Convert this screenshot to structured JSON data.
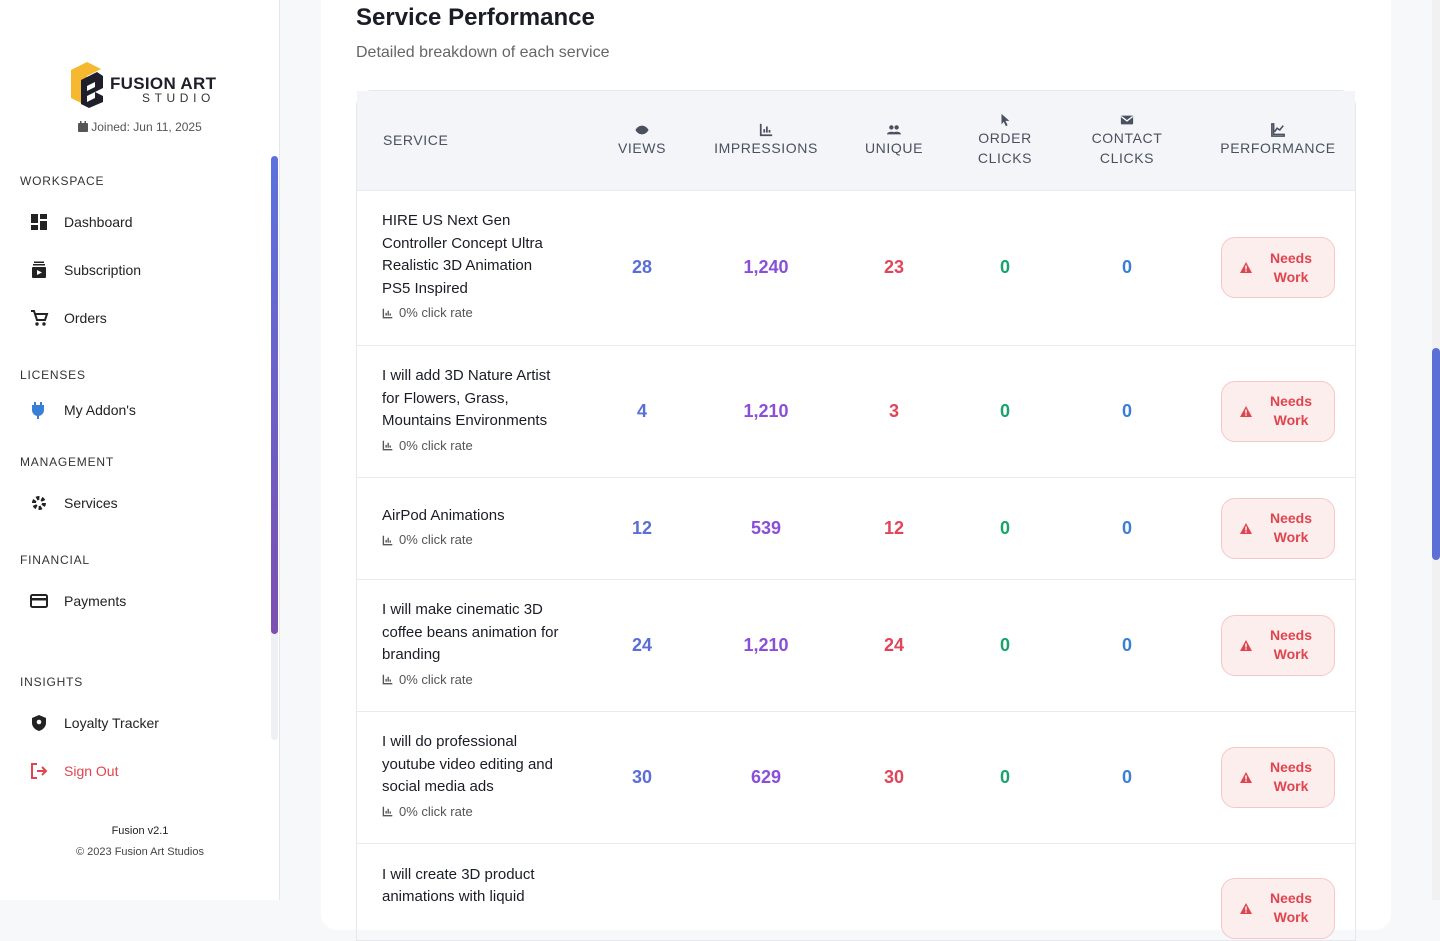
{
  "sidebar": {
    "logo": {
      "name": "FUSION ART",
      "sub": "STUDIO"
    },
    "joined": "Joined: Jun 11, 2025",
    "sections": [
      {
        "title": "WORKSPACE",
        "items": [
          "Dashboard",
          "Subscription",
          "Orders"
        ]
      },
      {
        "title": "LICENSES",
        "items": [
          "My Addon's"
        ]
      },
      {
        "title": "MANAGEMENT",
        "items": [
          "Services"
        ]
      },
      {
        "title": "FINANCIAL",
        "items": [
          "Payments"
        ]
      },
      {
        "title": "INSIGHTS",
        "items": [
          "Loyalty Tracker"
        ]
      }
    ],
    "sign_out": "Sign Out",
    "version": "Fusion v2.1",
    "copyright": "© 2023 Fusion Art Studios"
  },
  "main": {
    "title": "Service Performance",
    "subtitle": "Detailed breakdown of each service",
    "table": {
      "columns": [
        "SERVICE",
        "VIEWS",
        "IMPRESSIONS",
        "UNIQUE",
        "ORDER CLICKS",
        "CONTACT CLICKS",
        "PERFORMANCE"
      ],
      "rows": [
        {
          "service": "HIRE US Next Gen Controller Concept Ultra Realistic 3D Animation PS5 Inspired",
          "click_rate": "0% click rate",
          "views": "28",
          "impressions": "1,240",
          "unique": "23",
          "order_clicks": "0",
          "contact_clicks": "0",
          "status": "Needs Work"
        },
        {
          "service": "I will add 3D Nature Artist for Flowers, Grass, Mountains Environments",
          "click_rate": "0% click rate",
          "views": "4",
          "impressions": "1,210",
          "unique": "3",
          "order_clicks": "0",
          "contact_clicks": "0",
          "status": "Needs Work"
        },
        {
          "service": "AirPod Animations",
          "click_rate": "0% click rate",
          "views": "12",
          "impressions": "539",
          "unique": "12",
          "order_clicks": "0",
          "contact_clicks": "0",
          "status": "Needs Work"
        },
        {
          "service": "I will make cinematic 3D coffee beans animation for branding",
          "click_rate": "0% click rate",
          "views": "24",
          "impressions": "1,210",
          "unique": "24",
          "order_clicks": "0",
          "contact_clicks": "0",
          "status": "Needs Work"
        },
        {
          "service": "I will do professional youtube video editing and social media ads",
          "click_rate": "0% click rate",
          "views": "30",
          "impressions": "629",
          "unique": "30",
          "order_clicks": "0",
          "contact_clicks": "0",
          "status": "Needs Work"
        },
        {
          "service": "I will create 3D product animations with liquid",
          "status": "Needs Work"
        }
      ]
    }
  }
}
